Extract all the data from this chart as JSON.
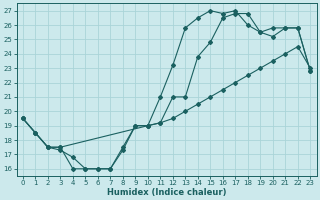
{
  "xlabel": "Humidex (Indice chaleur)",
  "bg_color": "#cce9ec",
  "grid_color": "#aad4d8",
  "line_color": "#1a6060",
  "xlim": [
    -0.5,
    23.5
  ],
  "ylim": [
    15.5,
    27.5
  ],
  "xticks": [
    0,
    1,
    2,
    3,
    4,
    5,
    6,
    7,
    8,
    9,
    10,
    11,
    12,
    13,
    14,
    15,
    16,
    17,
    18,
    19,
    20,
    21,
    22,
    23
  ],
  "yticks": [
    16,
    17,
    18,
    19,
    20,
    21,
    22,
    23,
    24,
    25,
    26,
    27
  ],
  "line1_x": [
    0,
    1,
    2,
    3,
    4,
    5,
    6,
    7,
    8,
    9,
    10,
    11,
    12,
    13,
    14,
    15,
    16,
    17,
    18,
    19,
    20,
    21,
    22,
    23
  ],
  "line1_y": [
    19.5,
    18.5,
    17.5,
    17.5,
    16.0,
    16.0,
    16.0,
    16.0,
    17.5,
    19.0,
    19.0,
    21.0,
    23.2,
    25.8,
    26.5,
    27.0,
    26.8,
    27.0,
    26.0,
    25.5,
    25.8,
    25.8,
    25.8,
    22.8
  ],
  "line2_x": [
    0,
    1,
    2,
    3,
    10,
    11,
    12,
    13,
    14,
    15,
    16,
    17,
    18,
    19,
    20,
    21,
    22,
    23
  ],
  "line2_y": [
    19.5,
    18.5,
    17.5,
    17.5,
    19.0,
    19.2,
    19.5,
    20.0,
    20.5,
    21.0,
    21.5,
    22.0,
    22.5,
    23.0,
    23.5,
    24.0,
    24.5,
    23.0
  ],
  "line3_x": [
    0,
    1,
    2,
    3,
    4,
    5,
    6,
    7,
    8,
    9,
    10,
    11,
    12,
    13,
    14,
    15,
    16,
    17,
    18,
    19,
    20,
    21,
    22,
    23
  ],
  "line3_y": [
    19.5,
    18.5,
    17.5,
    17.3,
    16.8,
    16.0,
    16.0,
    16.0,
    17.3,
    19.0,
    19.0,
    19.2,
    21.0,
    21.0,
    23.8,
    24.8,
    26.5,
    26.8,
    26.8,
    25.5,
    25.2,
    25.8,
    25.8,
    22.8
  ]
}
